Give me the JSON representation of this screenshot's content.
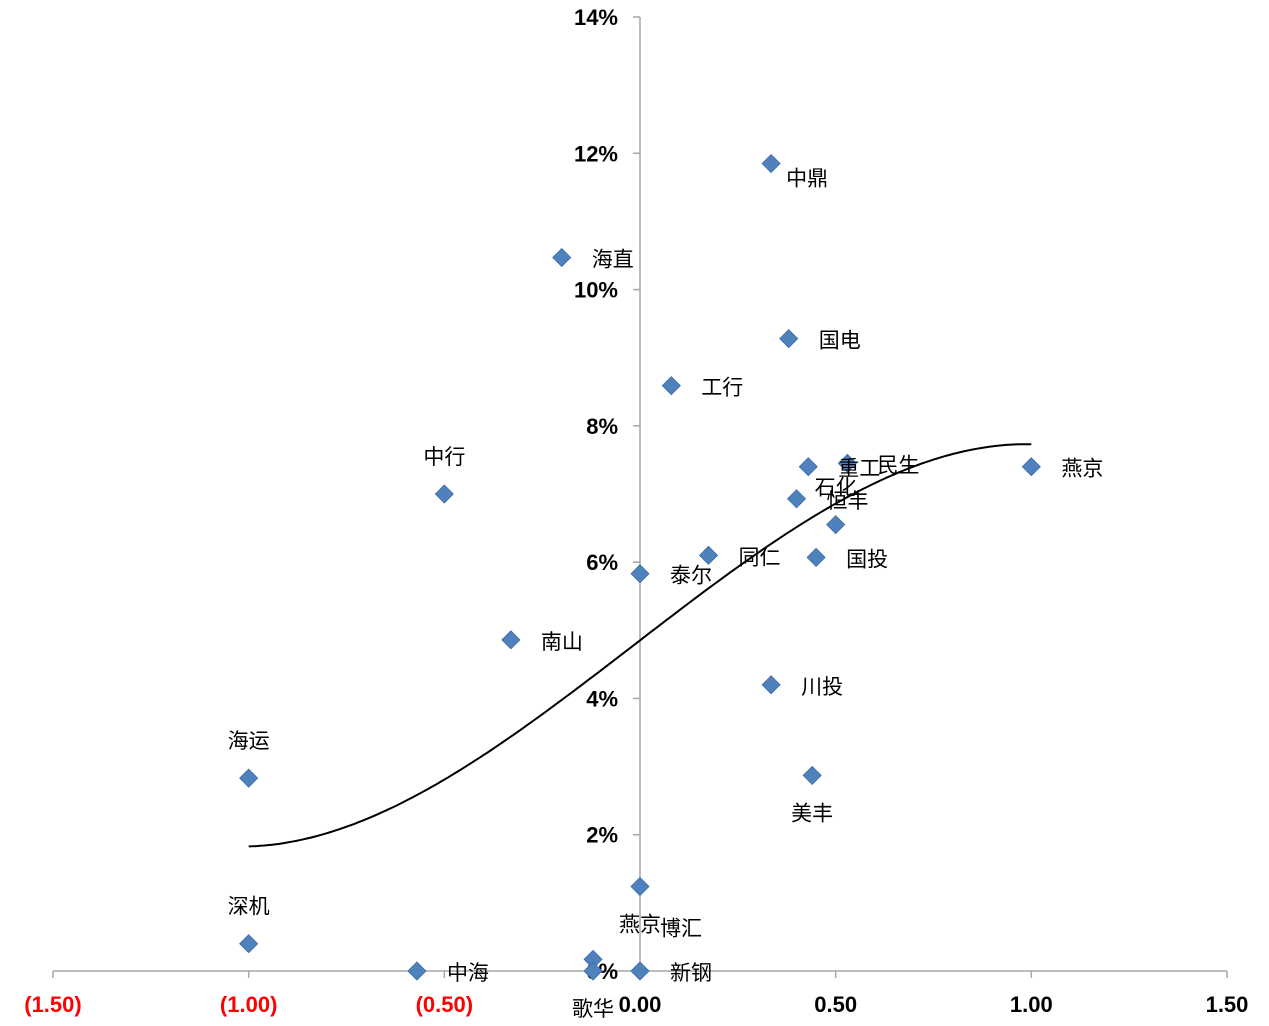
{
  "chart_data": {
    "type": "scatter",
    "title": "",
    "xlabel": "",
    "ylabel": "",
    "xlim": [
      -1.5,
      1.5
    ],
    "ylim": [
      0,
      0.14
    ],
    "grid": false,
    "negative_tick_color": "#ff0000",
    "point_color": "#4f81bd",
    "trendline": {
      "type": "polynomial",
      "degree": 3,
      "x_range": [
        -1.0,
        1.0
      ],
      "color": "#000000"
    },
    "x_ticks": [
      {
        "value": -1.5,
        "label": "(1.50)"
      },
      {
        "value": -1.0,
        "label": "(1.00)"
      },
      {
        "value": -0.5,
        "label": "(0.50)"
      },
      {
        "value": 0.0,
        "label": "0.00"
      },
      {
        "value": 0.5,
        "label": "0.50"
      },
      {
        "value": 1.0,
        "label": "1.00"
      },
      {
        "value": 1.5,
        "label": "1.50"
      }
    ],
    "y_ticks": [
      {
        "value": 0.0,
        "label": "0%"
      },
      {
        "value": 0.02,
        "label": "2%"
      },
      {
        "value": 0.04,
        "label": "4%"
      },
      {
        "value": 0.06,
        "label": "6%"
      },
      {
        "value": 0.08,
        "label": "8%"
      },
      {
        "value": 0.1,
        "label": "10%"
      },
      {
        "value": 0.12,
        "label": "12%"
      },
      {
        "value": 0.14,
        "label": "14%"
      }
    ],
    "points": [
      {
        "label": "中鼎",
        "x": 0.335,
        "y": 0.1185,
        "label_pos": "below-right"
      },
      {
        "label": "海直",
        "x": -0.2,
        "y": 0.1047,
        "label_pos": "right"
      },
      {
        "label": "国电",
        "x": 0.38,
        "y": 0.0928,
        "label_pos": "right"
      },
      {
        "label": "工行",
        "x": 0.08,
        "y": 0.0859,
        "label_pos": "right"
      },
      {
        "label": "中行",
        "x": -0.5,
        "y": 0.07,
        "label_pos": "above"
      },
      {
        "label": "燕京",
        "x": 1.0,
        "y": 0.074,
        "label_pos": "right"
      },
      {
        "label": "重工",
        "x": 0.43,
        "y": 0.074,
        "label_pos": "right"
      },
      {
        "label": "民生",
        "x": 0.53,
        "y": 0.0745,
        "label_pos": "right"
      },
      {
        "label": "恒丰",
        "x": 0.4,
        "y": 0.0693,
        "label_pos": "right"
      },
      {
        "label": "石化",
        "x": 0.5,
        "y": 0.0655,
        "label_pos": "above"
      },
      {
        "label": "同仁",
        "x": 0.175,
        "y": 0.061,
        "label_pos": "right"
      },
      {
        "label": "国投",
        "x": 0.45,
        "y": 0.0607,
        "label_pos": "right"
      },
      {
        "label": "泰尔",
        "x": 0.0,
        "y": 0.0583,
        "label_pos": "right"
      },
      {
        "label": "南山",
        "x": -0.33,
        "y": 0.0486,
        "label_pos": "right"
      },
      {
        "label": "川投",
        "x": 0.335,
        "y": 0.042,
        "label_pos": "right"
      },
      {
        "label": "海运",
        "x": -1.0,
        "y": 0.0283,
        "label_pos": "above"
      },
      {
        "label": "美丰",
        "x": 0.44,
        "y": 0.0287,
        "label_pos": "below"
      },
      {
        "label": "燕京",
        "x": 0.0,
        "y": 0.0124,
        "label_pos": "below"
      },
      {
        "label": "深机",
        "x": -1.0,
        "y": 0.004,
        "label_pos": "above"
      },
      {
        "label": "博汇",
        "x": -0.12,
        "y": 0.0017,
        "label_pos": "upper-right"
      },
      {
        "label": "中海",
        "x": -0.57,
        "y": 0.0,
        "label_pos": "right"
      },
      {
        "label": "新钢",
        "x": 0.0,
        "y": 0.0,
        "label_pos": "right"
      },
      {
        "label": "歌华",
        "x": -0.12,
        "y": 0.0,
        "label_pos": "below"
      }
    ]
  }
}
